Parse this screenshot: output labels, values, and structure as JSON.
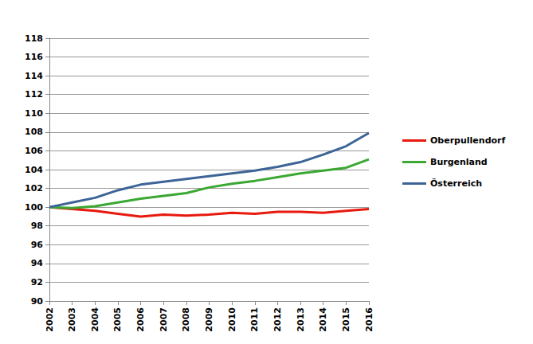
{
  "chart_data": {
    "type": "line",
    "categories": [
      "2002",
      "2003",
      "2004",
      "2005",
      "2006",
      "2007",
      "2008",
      "2009",
      "2010",
      "2011",
      "2012",
      "2013",
      "2014",
      "2015",
      "2016"
    ],
    "series": [
      {
        "name": "Oberpullendorf",
        "color": "#e8190e",
        "values": [
          100,
          99.8,
          99.6,
          99.3,
          99.0,
          99.2,
          99.1,
          99.2,
          99.4,
          99.3,
          99.5,
          99.5,
          99.4,
          99.6,
          99.8
        ]
      },
      {
        "name": "Burgenland",
        "color": "#3aa832",
        "values": [
          100,
          99.9,
          100.1,
          100.5,
          100.9,
          101.2,
          101.5,
          102.1,
          102.5,
          102.8,
          103.2,
          103.6,
          103.9,
          104.2,
          105.1
        ]
      },
      {
        "name": "Österreich",
        "color": "#3c6496",
        "values": [
          100,
          100.5,
          101.0,
          101.8,
          102.4,
          102.7,
          103.0,
          103.3,
          103.6,
          103.9,
          104.3,
          104.8,
          105.6,
          106.5,
          107.9
        ]
      }
    ],
    "ylim": [
      90,
      118
    ],
    "yticks": [
      90,
      92,
      94,
      96,
      98,
      100,
      102,
      104,
      106,
      108,
      110,
      112,
      114,
      116,
      118
    ],
    "grid": true,
    "legend": "right"
  }
}
